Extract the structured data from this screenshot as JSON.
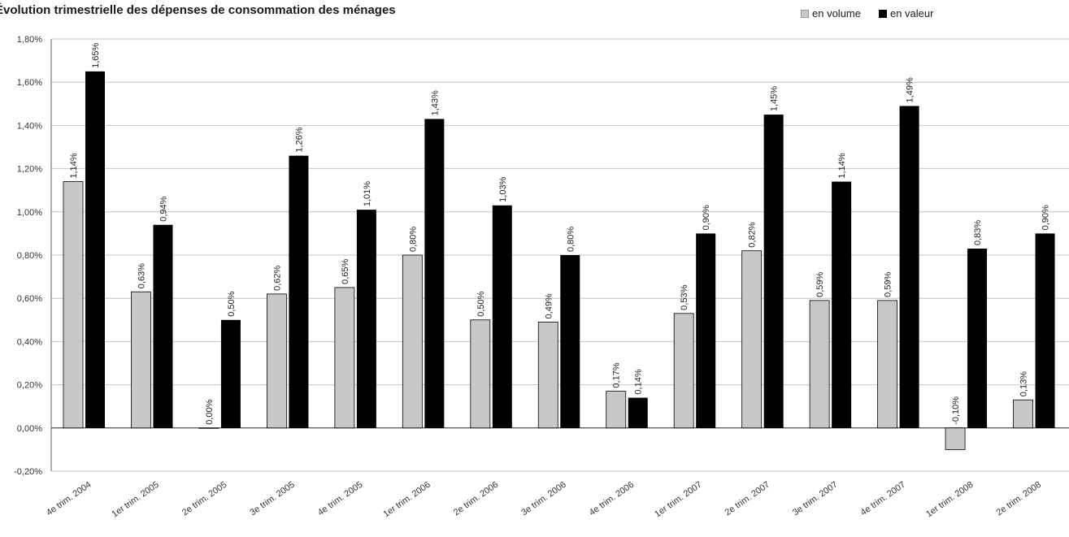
{
  "chart_data": {
    "type": "bar",
    "title": "Évolution trimestrielle des dépenses de consommation des ménages",
    "categories": [
      "4e trim. 2004",
      "1er trim. 2005",
      "2e trim. 2005",
      "3e trim. 2005",
      "4e trim. 2005",
      "1er trim. 2006",
      "2e trim. 2006",
      "3e trim. 2006",
      "4e trim. 2006",
      "1er trim. 2007",
      "2e trim. 2007",
      "3e trim. 2007",
      "4e trim. 2007",
      "1er trim. 2008",
      "2e trim. 2008"
    ],
    "series": [
      {
        "name": "en volume",
        "color": "#c8c8c8",
        "values": [
          1.14,
          0.63,
          0.0,
          0.62,
          0.65,
          0.8,
          0.5,
          0.49,
          0.17,
          0.53,
          0.82,
          0.59,
          0.59,
          -0.1,
          0.13
        ],
        "labels": [
          "1,14%",
          "0,63%",
          "0,00%",
          "0,62%",
          "0,65%",
          "0,80%",
          "0,50%",
          "0,49%",
          "0,17%",
          "0,53%",
          "0,82%",
          "0,59%",
          "0,59%",
          "-0,10%",
          "0,13%"
        ]
      },
      {
        "name": "en valeur",
        "color": "#000000",
        "values": [
          1.65,
          0.94,
          0.5,
          1.26,
          1.01,
          1.43,
          1.03,
          0.8,
          0.14,
          0.9,
          1.45,
          1.14,
          1.49,
          0.83,
          0.9
        ],
        "labels": [
          "1,65%",
          "0,94%",
          "0,50%",
          "1,26%",
          "1,01%",
          "1,43%",
          "1,03%",
          "0,80%",
          "0,14%",
          "0,90%",
          "1,45%",
          "1,14%",
          "1,49%",
          "0,83%",
          "0,90%"
        ]
      }
    ],
    "ylim": [
      -0.2,
      1.8
    ],
    "yticks": [
      -0.2,
      0,
      0.2,
      0.4,
      0.6,
      0.8,
      1.0,
      1.2,
      1.4,
      1.6,
      1.8
    ],
    "ytick_labels": [
      "-0,20%",
      "0,00%",
      "0,20%",
      "0,40%",
      "0,60%",
      "0,80%",
      "1,00%",
      "1,20%",
      "1,40%",
      "1,60%",
      "1,80%"
    ],
    "grid": true,
    "legend_position": "top-right"
  }
}
